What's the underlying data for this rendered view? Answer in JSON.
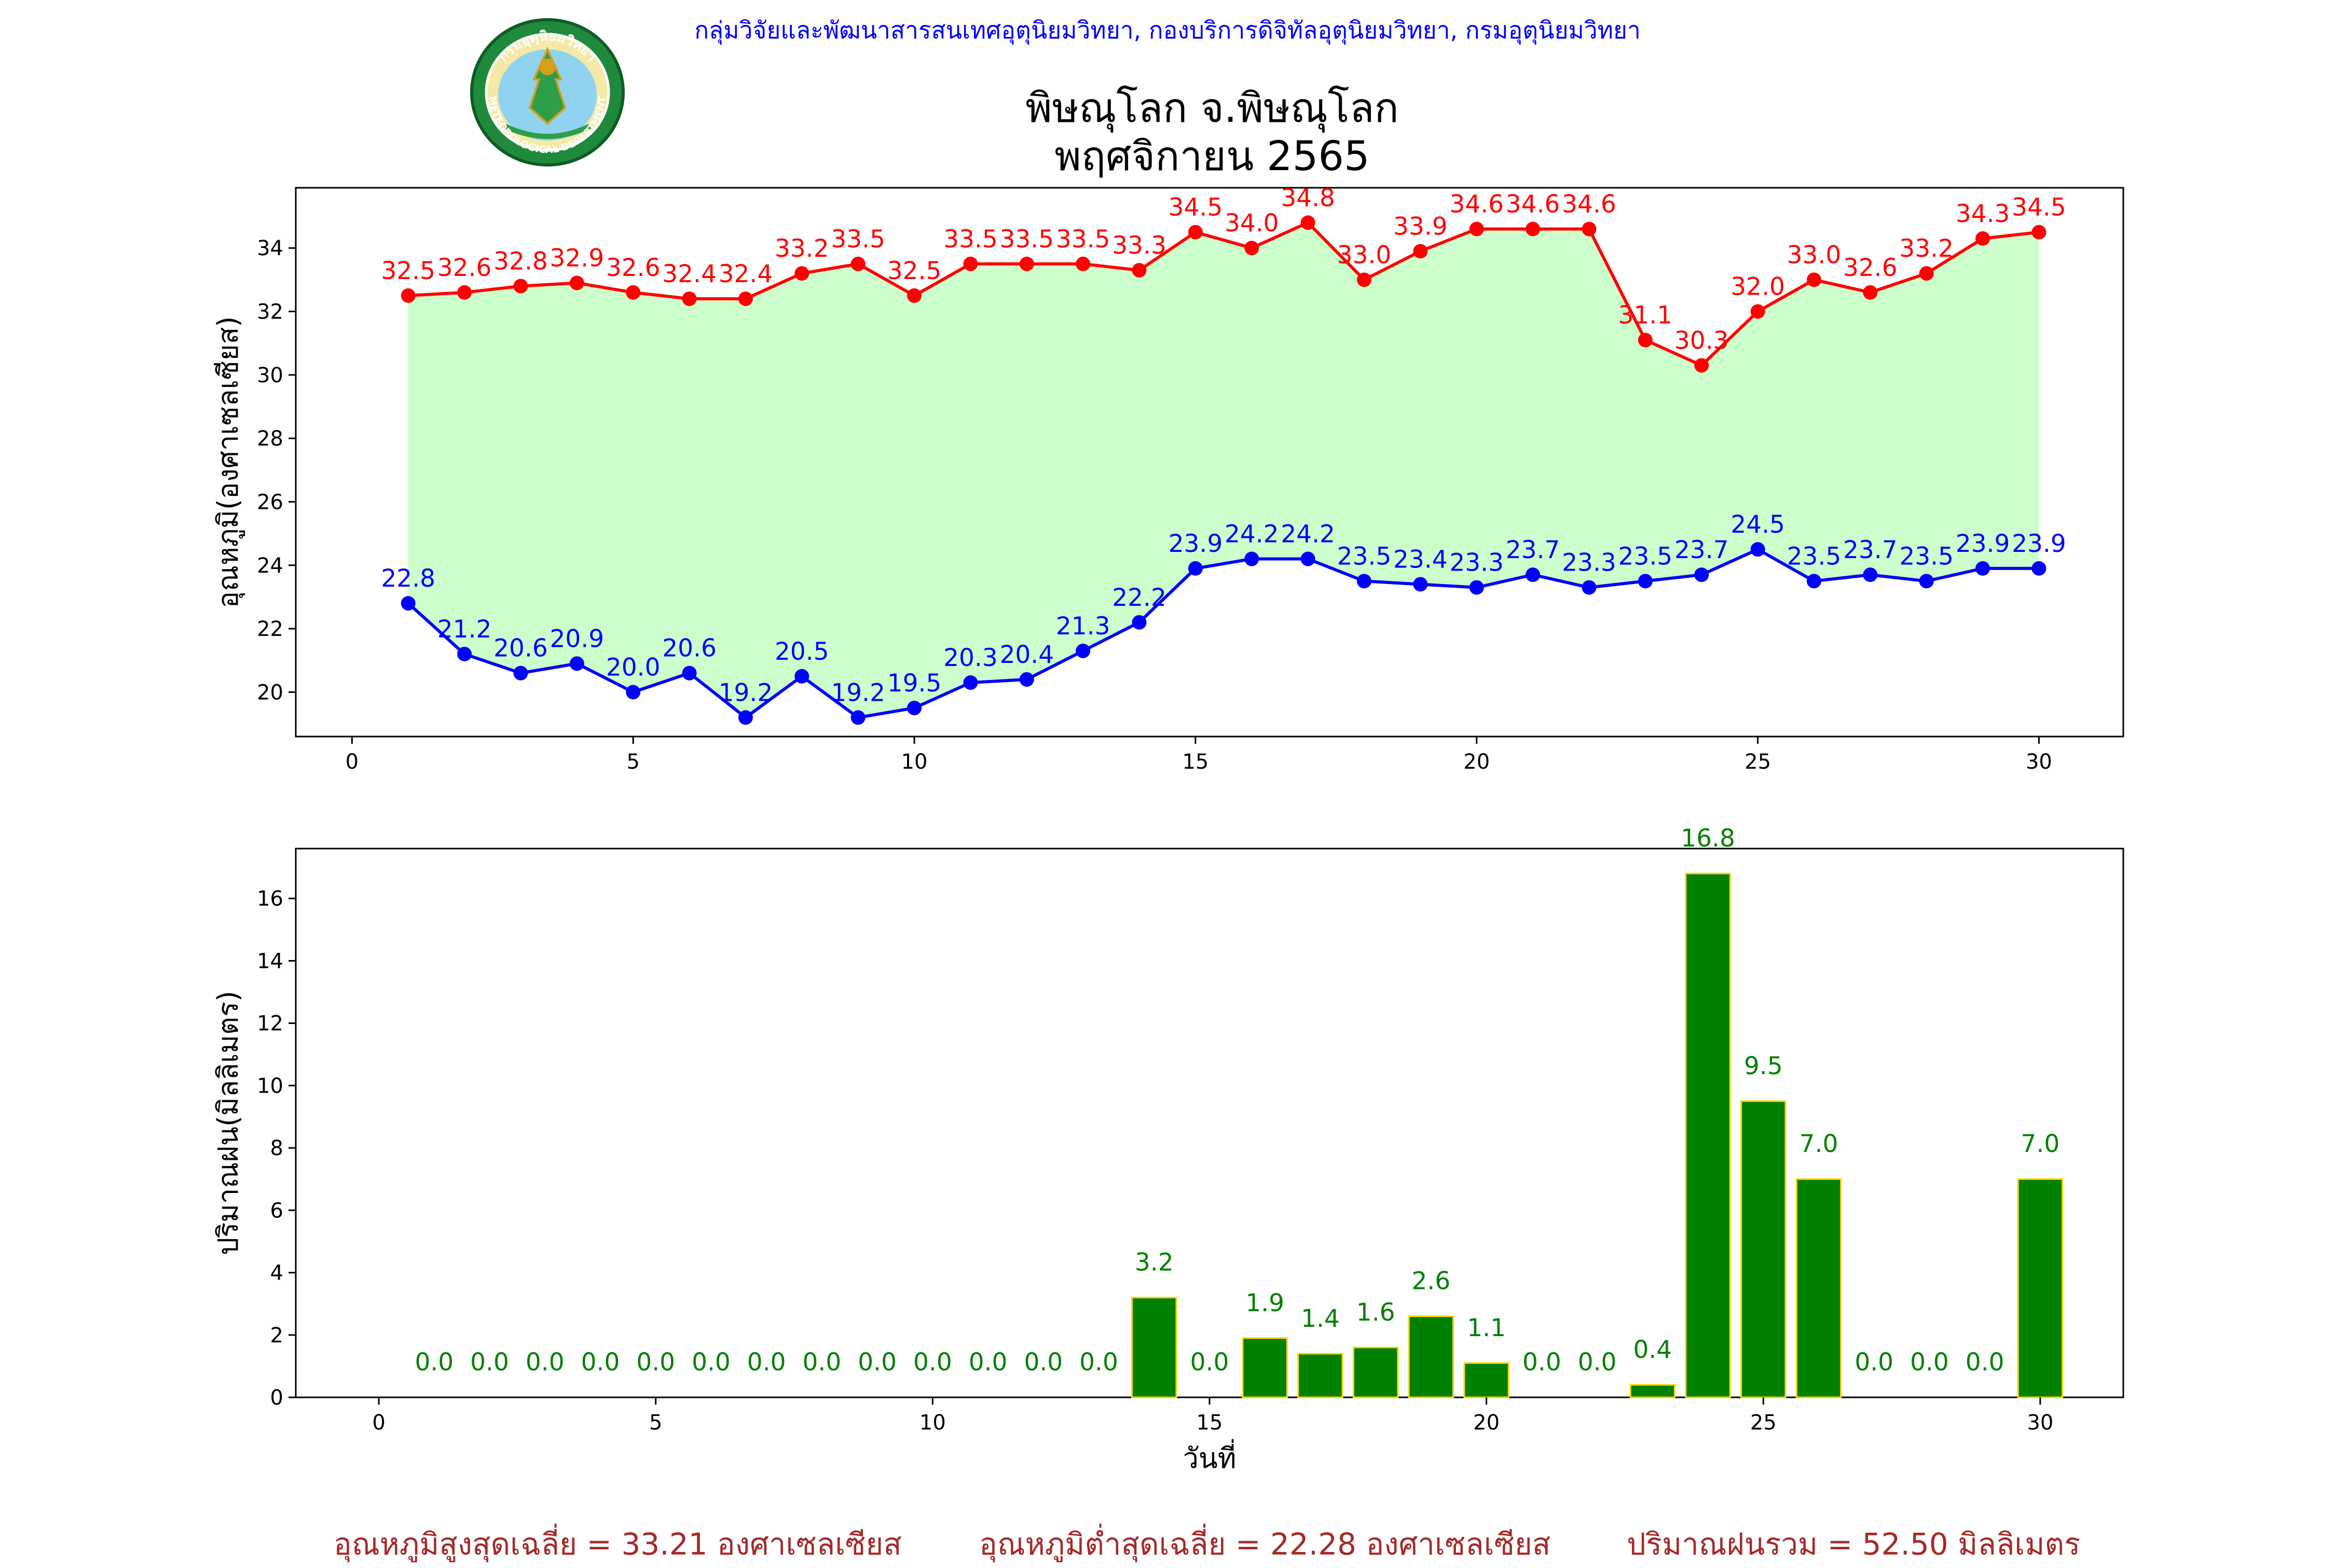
{
  "header": {
    "org_line": "กลุ่มวิจัยและพัฒนาสารสนเทศอุตุนิยมวิทยา, กองบริการดิจิทัลอุตุนิยมวิทยา, กรมอุตุนิยมวิทยา",
    "org_color": "#0000ff"
  },
  "logo": {
    "icon": "meteorological-department-seal-icon",
    "top_text": "กรมอุตุนิยมวิทยา",
    "bottom_text": "METEOROLOGICAL DEPARTMENT"
  },
  "title": {
    "line1": "พิษณุโลก จ.พิษณุโลก",
    "line2": "พฤศจิกายน 2565"
  },
  "chart_data": [
    {
      "type": "line",
      "ylabel": "อุณหภูมิ(องศาเซลเซียส)",
      "xlabel": "",
      "x": [
        1,
        2,
        3,
        4,
        5,
        6,
        7,
        8,
        9,
        10,
        11,
        12,
        13,
        14,
        15,
        16,
        17,
        18,
        19,
        20,
        21,
        22,
        23,
        24,
        25,
        26,
        27,
        28,
        29,
        30
      ],
      "series": [
        {
          "values": [
            32.5,
            32.6,
            32.8,
            32.9,
            32.6,
            32.4,
            32.4,
            33.2,
            33.5,
            32.5,
            33.5,
            33.5,
            33.5,
            33.3,
            34.5,
            34.0,
            34.8,
            33.0,
            33.9,
            34.6,
            34.6,
            34.6,
            31.1,
            30.3,
            32.0,
            33.0,
            32.6,
            33.2,
            34.3,
            34.5
          ],
          "color": "#ff0000"
        },
        {
          "values": [
            22.8,
            21.2,
            20.6,
            20.9,
            20.0,
            20.6,
            19.2,
            20.5,
            19.2,
            19.5,
            20.3,
            20.4,
            21.3,
            22.2,
            23.9,
            24.2,
            24.2,
            23.5,
            23.4,
            23.3,
            23.7,
            23.3,
            23.5,
            23.7,
            24.5,
            23.5,
            23.7,
            23.5,
            23.9,
            23.9
          ],
          "color": "#0000ff"
        }
      ],
      "fill_between_color": "#ccffcc",
      "xlim": [
        -1,
        31.5
      ],
      "ylim": [
        18.6,
        35.9
      ],
      "xticks": [
        0,
        5,
        10,
        15,
        20,
        25,
        30
      ],
      "yticks": [
        20,
        22,
        24,
        26,
        28,
        30,
        32,
        34
      ],
      "grid": false
    },
    {
      "type": "bar",
      "ylabel": "ปริมาณฝน(มิลลิเมตร)",
      "xlabel": "วันที่",
      "x": [
        1,
        2,
        3,
        4,
        5,
        6,
        7,
        8,
        9,
        10,
        11,
        12,
        13,
        14,
        15,
        16,
        17,
        18,
        19,
        20,
        21,
        22,
        23,
        24,
        25,
        26,
        27,
        28,
        29,
        30
      ],
      "values": [
        0.0,
        0.0,
        0.0,
        0.0,
        0.0,
        0.0,
        0.0,
        0.0,
        0.0,
        0.0,
        0.0,
        0.0,
        0.0,
        3.2,
        0.0,
        1.9,
        1.4,
        1.6,
        2.6,
        1.1,
        0.0,
        0.0,
        0.4,
        16.8,
        9.5,
        7.0,
        0.0,
        0.0,
        0.0,
        7.0
      ],
      "bar_color": "#008000",
      "bar_edge_color": "#ffd700",
      "label_color": "#008000",
      "xlim": [
        -1.5,
        31.5
      ],
      "ylim": [
        0,
        17.6
      ],
      "xticks": [
        0,
        5,
        10,
        15,
        20,
        25,
        30
      ],
      "yticks": [
        0,
        2,
        4,
        6,
        8,
        10,
        12,
        14,
        16
      ],
      "grid": false
    }
  ],
  "footer": {
    "max_avg": "อุณหภูมิสูงสุดเฉลี่ย = 33.21 องศาเซลเซียส",
    "min_avg": "อุณหภูมิต่ำสุดเฉลี่ย = 22.28 องศาเซลเซียส",
    "rain_total": "ปริมาณฝนรวม = 52.50 มิลลิเมตร",
    "color": "#a52a2a"
  }
}
